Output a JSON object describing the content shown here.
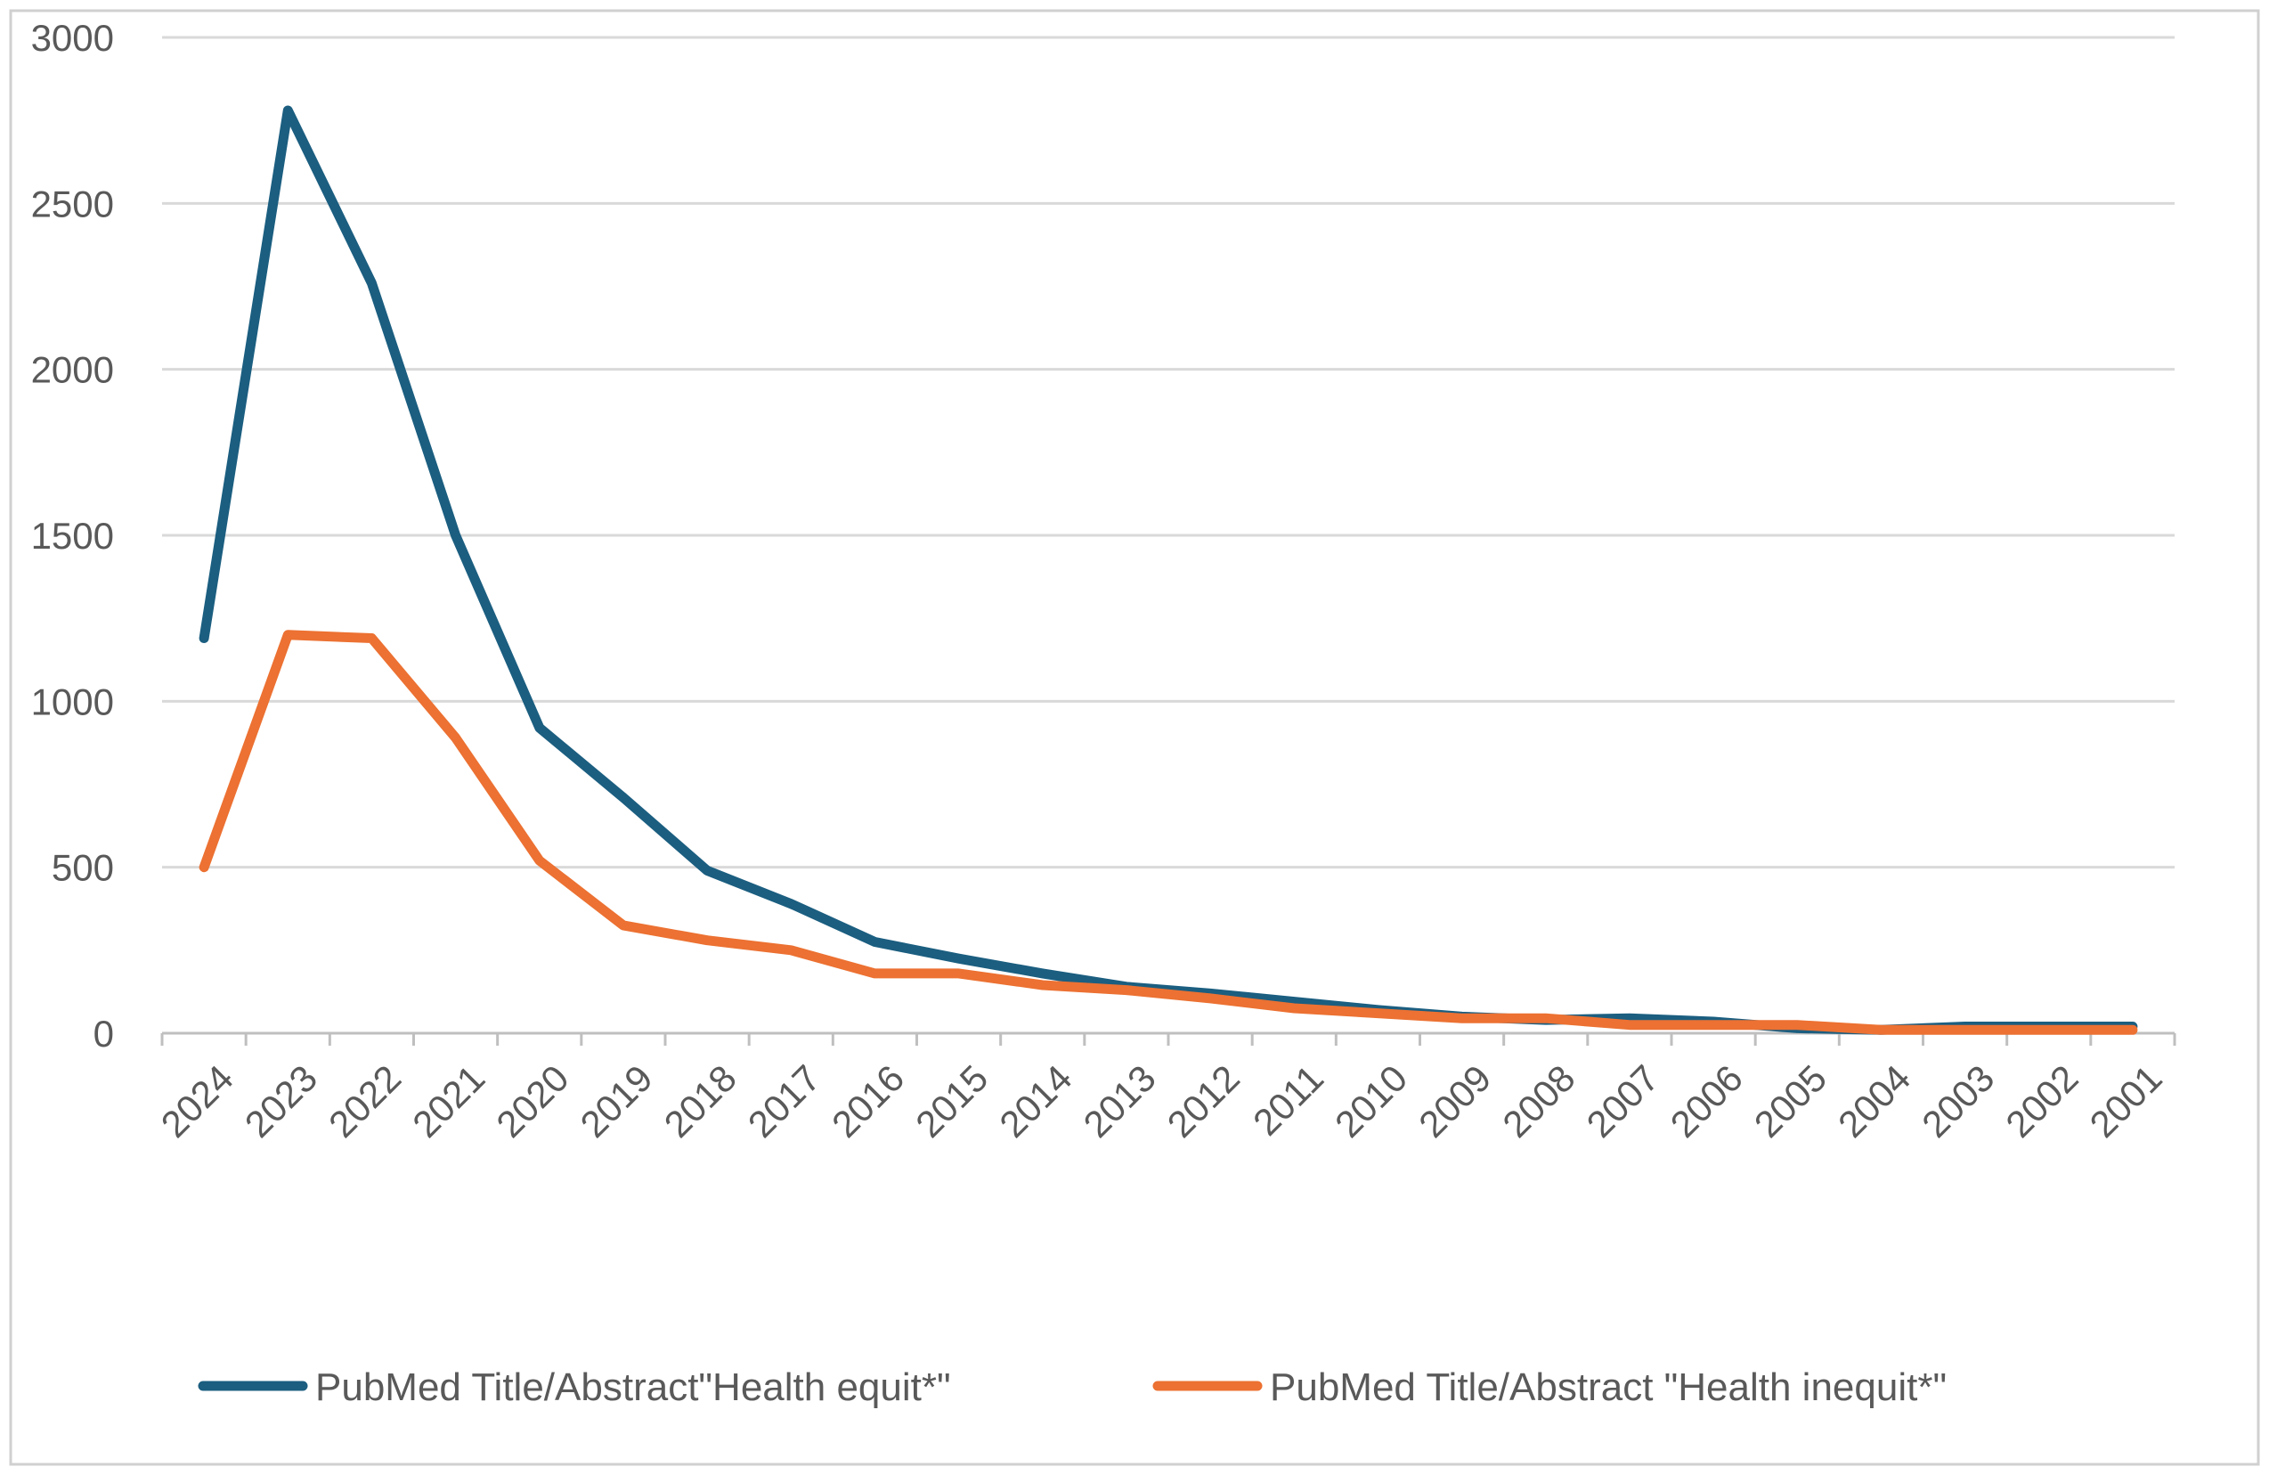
{
  "chart_data": {
    "type": "line",
    "title": "",
    "xlabel": "",
    "ylabel": "",
    "categories": [
      "2024",
      "2023",
      "2022",
      "2021",
      "2020",
      "2019",
      "2018",
      "2017",
      "2016",
      "2015",
      "2014",
      "2013",
      "2012",
      "2011",
      "2010",
      "2009",
      "2008",
      "2007",
      "2006",
      "2005",
      "2004",
      "2003",
      "2002",
      "2001"
    ],
    "series": [
      {
        "name": "PubMed Title/Abstract\"Health equit*\"",
        "color": "#1b5e80",
        "values": [
          1190,
          2780,
          2260,
          1500,
          920,
          710,
          490,
          390,
          275,
          225,
          180,
          140,
          120,
          95,
          70,
          50,
          40,
          45,
          35,
          15,
          10,
          20,
          20,
          20
        ]
      },
      {
        "name": "PubMed Title/Abstract \"Health inequit*\"",
        "color": "#ec7132",
        "values": [
          500,
          1200,
          1190,
          890,
          520,
          325,
          280,
          250,
          180,
          180,
          145,
          130,
          105,
          75,
          60,
          45,
          45,
          25,
          25,
          25,
          10,
          10,
          10,
          10
        ]
      }
    ],
    "ylim": [
      0,
      3000
    ],
    "yticks": [
      0,
      500,
      1000,
      1500,
      2000,
      2500,
      3000
    ],
    "grid": "horizontal",
    "legend_position": "bottom"
  }
}
